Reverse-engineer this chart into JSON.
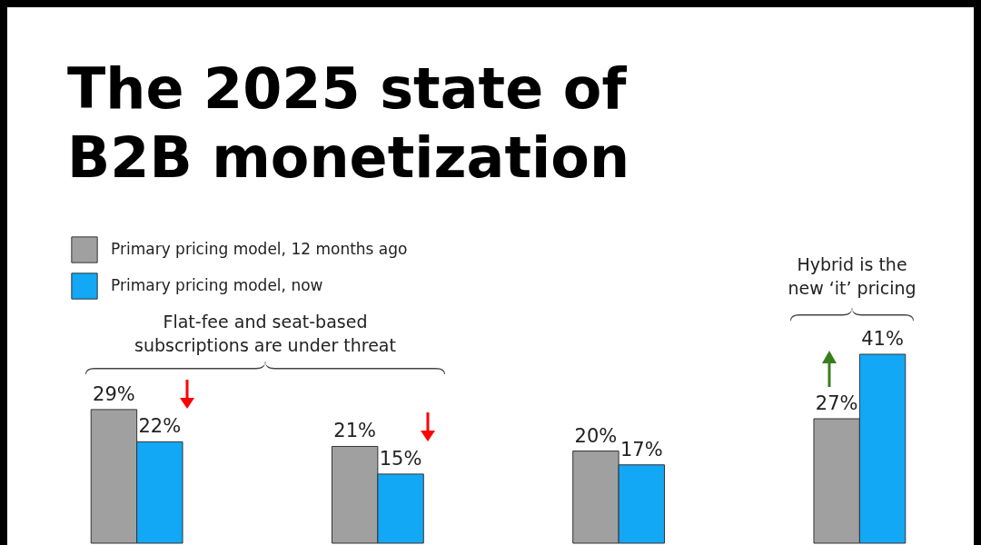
{
  "chart_data": {
    "type": "bar",
    "title": "The 2025 state of B2B monetization",
    "annotations": [
      "Flat-fee and seat-based subscriptions are under threat",
      "Hybrid is the new ‘it’ pricing"
    ],
    "categories": [
      null,
      null,
      null,
      null
    ],
    "series": [
      {
        "name": "Primary pricing model, 12 months ago",
        "color": "#a0a0a0",
        "values": [
          29,
          21,
          20,
          27
        ],
        "value_labels": [
          "29%",
          "21%",
          "20%",
          "27%"
        ]
      },
      {
        "name": "Primary pricing model, now",
        "color": "#12a8f5",
        "values": [
          22,
          15,
          17,
          41
        ],
        "value_labels": [
          "22%",
          "15%",
          "17%",
          "41%"
        ]
      }
    ],
    "legend": "top left"
  }
}
